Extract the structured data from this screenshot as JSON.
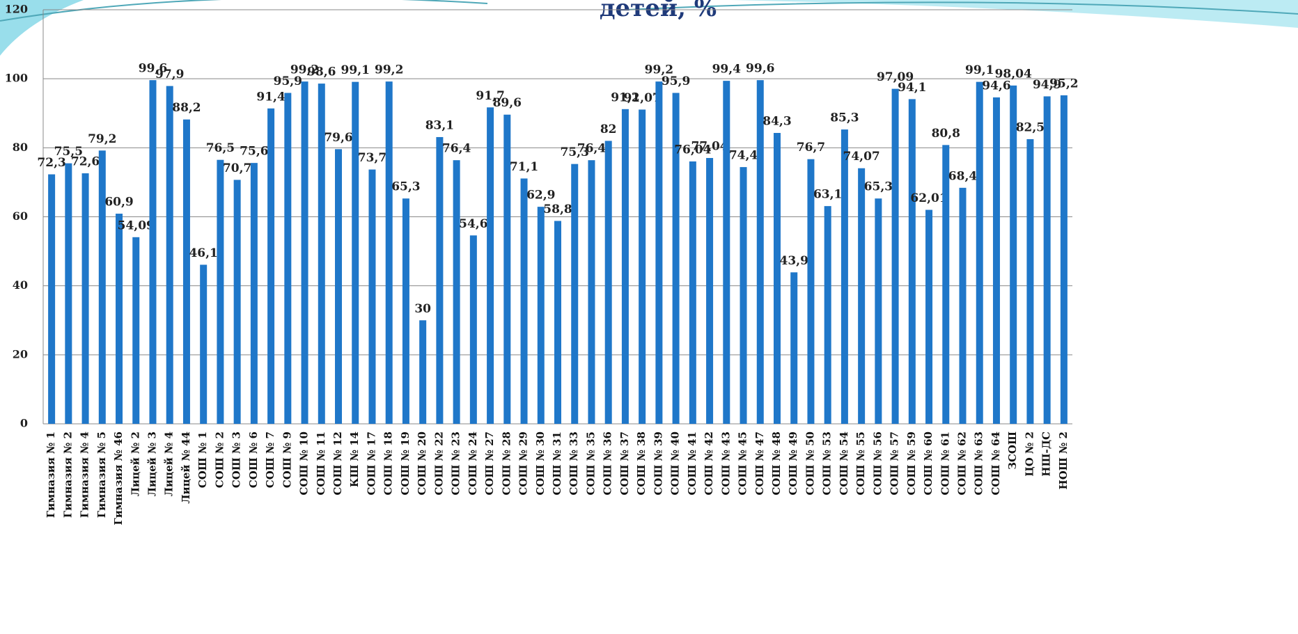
{
  "chart_data": {
    "type": "bar",
    "title": "детей, %",
    "categories": [
      "Гимназия № 1",
      "Гимназия № 2",
      "Гимназия № 4",
      "Гимназия № 5",
      "Гимназия № 46",
      "Лицей № 2",
      "Лицей № 3",
      "Лицей № 4",
      "Лицей № 44",
      "СОШ № 1",
      "СОШ № 2",
      "СОШ № 3",
      "СОШ № 6",
      "СОШ № 7",
      "СОШ № 9",
      "СОШ № 10",
      "СОШ № 11",
      "СОШ № 12",
      "КШ № 14",
      "СОШ № 17",
      "СОШ № 18",
      "СОШ № 19",
      "СОШ № 20",
      "СОШ № 22",
      "СОШ № 23",
      "СОШ № 24",
      "СОШ № 27",
      "СОШ № 28",
      "СОШ № 29",
      "СОШ № 30",
      "СОШ № 31",
      "СОШ № 33",
      "СОШ № 35",
      "СОШ № 36",
      "СОШ № 37",
      "СОШ № 38",
      "СОШ № 39",
      "СОШ № 40",
      "СОШ № 41",
      "СОШ № 42",
      "СОШ № 43",
      "СОШ № 45",
      "СОШ № 47",
      "СОШ № 48",
      "СОШ № 49",
      "СОШ № 50",
      "СОШ № 53",
      "СОШ № 54",
      "СОШ № 55",
      "СОШ № 56",
      "СОШ № 57",
      "СОШ № 59",
      "СОШ № 60",
      "СОШ № 61",
      "СОШ № 62",
      "СОШ № 63",
      "СОШ № 64",
      "ЗСОШ",
      "ЦО № 2",
      "НШ-ДС",
      "НОШ № 2"
    ],
    "values": [
      72.3,
      75.5,
      72.6,
      79.2,
      60.9,
      54.09,
      99.6,
      97.9,
      88.2,
      46.1,
      76.5,
      70.7,
      75.6,
      91.4,
      95.9,
      99.2,
      98.6,
      79.6,
      99.1,
      73.7,
      99.2,
      65.3,
      30,
      83.1,
      76.4,
      54.6,
      91.7,
      89.6,
      71.1,
      62.9,
      58.8,
      75.3,
      76.4,
      82,
      91.2,
      91.07,
      99.2,
      95.9,
      76.04,
      77.04,
      99.4,
      74.4,
      99.6,
      84.3,
      43.9,
      76.7,
      63.1,
      85.3,
      74.07,
      65.3,
      97.09,
      94.1,
      62.01,
      80.8,
      68.4,
      99.1,
      94.6,
      98.04,
      82.5,
      94.9,
      95.2
    ],
    "value_labels": [
      "72,3",
      "75,5",
      "72,6",
      "79,2",
      "60,9",
      "54,09",
      "99,6",
      "97,9",
      "88,2",
      "46,1",
      "76,5",
      "70,7",
      "75,6",
      "91,4",
      "95,9",
      "99,2",
      "98,6",
      "79,6",
      "99,1",
      "73,7",
      "99,2",
      "65,3",
      "30",
      "83,1",
      "76,4",
      "54,6",
      "91,7",
      "89,6",
      "71,1",
      "62,9",
      "58,8",
      "75,3",
      "76,4",
      "82",
      "91,2",
      "91,07",
      "99,2",
      "95,9",
      "76,04",
      "77,04",
      "99,4",
      "74,4",
      "99,6",
      "84,3",
      "43,9",
      "76,7",
      "63,1",
      "85,3",
      "74,07",
      "65,3",
      "97,09",
      "94,1",
      "62,01",
      "80,8",
      "68,4",
      "99,1",
      "94,6",
      "98,04",
      "82,5",
      "94,9",
      "95,2"
    ],
    "color": "#1f77c9",
    "ylim": [
      0,
      120
    ],
    "yticks": [
      0,
      20,
      40,
      60,
      80,
      100,
      120
    ],
    "grid": true
  }
}
